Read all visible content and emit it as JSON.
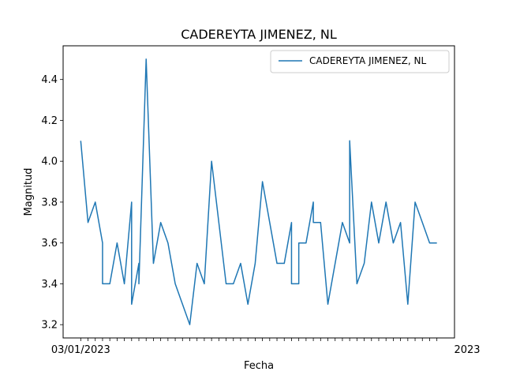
{
  "chart_data": {
    "type": "line",
    "title": "CADEREYTA JIMENEZ, NL",
    "xlabel": "Fecha",
    "ylabel": "Magnitud",
    "ylim": [
      3.135,
      4.565
    ],
    "yticks": [
      3.2,
      3.4,
      3.6,
      3.8,
      4.0,
      4.2,
      4.4
    ],
    "ytick_labels": [
      "3.2",
      "3.4",
      "3.6",
      "3.8",
      "4.0",
      "4.2",
      "4.4"
    ],
    "xtick_first_label": "03/01/2023",
    "xtick_last_label": "2023",
    "xtick_count": 50,
    "grid": false,
    "legend_position": "top-right",
    "color": "#1f77b4",
    "series": [
      {
        "name": "CADEREYTA JIMENEZ, NL",
        "x": [
          0,
          1,
          2,
          3,
          3,
          3,
          4,
          5,
          6,
          7,
          7,
          8,
          8,
          9,
          9,
          10,
          11,
          12,
          13,
          14,
          15,
          16,
          17,
          18,
          19,
          20,
          21,
          22,
          23,
          24,
          25,
          26,
          26,
          27,
          28,
          29,
          29,
          30,
          30,
          31,
          32,
          32,
          33,
          34,
          35,
          36,
          37,
          37,
          38,
          39,
          40,
          41,
          42,
          42,
          43,
          44,
          45,
          46,
          47,
          48,
          49
        ],
        "values": [
          4.1,
          3.7,
          3.8,
          3.6,
          3.4,
          3.4,
          3.4,
          3.6,
          3.4,
          3.8,
          3.3,
          3.5,
          3.4,
          4.5,
          4.5,
          3.5,
          3.7,
          3.6,
          3.4,
          3.3,
          3.2,
          3.5,
          3.4,
          4.0,
          3.7,
          3.4,
          3.4,
          3.5,
          3.3,
          3.5,
          3.9,
          3.7,
          3.7,
          3.5,
          3.5,
          3.7,
          3.4,
          3.4,
          3.6,
          3.6,
          3.8,
          3.7,
          3.7,
          3.3,
          3.5,
          3.7,
          3.6,
          4.1,
          3.4,
          3.5,
          3.8,
          3.6,
          3.8,
          3.8,
          3.6,
          3.7,
          3.3,
          3.8,
          3.7,
          3.6,
          3.6
        ]
      }
    ]
  }
}
